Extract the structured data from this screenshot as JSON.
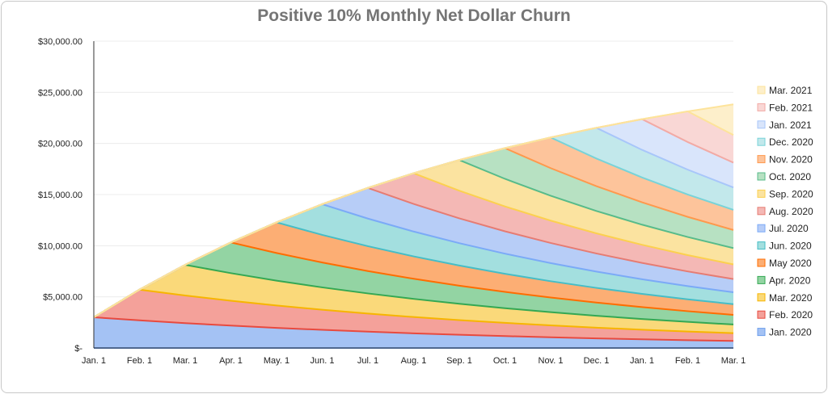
{
  "chart_data": {
    "type": "area",
    "stacked": true,
    "title": "Positive 10%  Monthly Net Dollar Churn",
    "xlabel": "",
    "ylabel": "",
    "ylim": [
      0,
      30000
    ],
    "yticks": [
      0,
      5000,
      10000,
      15000,
      20000,
      25000,
      30000
    ],
    "ytick_labels": [
      "$-",
      "$5,000.00",
      "$10,000.00",
      "$15,000.00",
      "$20,000.00",
      "$25,000.00",
      "$30,000.00"
    ],
    "grid": true,
    "legend_position": "right",
    "categories": [
      "Jan. 1",
      "Feb. 1",
      "Mar. 1",
      "Apr. 1",
      "May. 1",
      "Jun. 1",
      "Jul. 1",
      "Aug. 1",
      "Sep. 1",
      "Oct. 1",
      "Nov. 1",
      "Dec. 1",
      "Jan. 1",
      "Feb. 1",
      "Mar. 1"
    ],
    "series": [
      {
        "name": "Jan. 2020",
        "fill": "#a4c2f4",
        "line": "#6d9eeb",
        "values": [
          3000,
          2700,
          2430,
          2187,
          1968.3,
          1771.47,
          1594.32,
          1434.89,
          1291.4,
          1162.26,
          1046.03,
          941.43,
          847.29,
          762.56,
          686.3
        ]
      },
      {
        "name": "Feb. 2020",
        "fill": "#f4a19a",
        "line": "#e84a3f",
        "values": [
          0,
          3000,
          2700,
          2430,
          2187,
          1968.3,
          1771.47,
          1594.32,
          1434.89,
          1291.4,
          1162.26,
          1046.03,
          941.43,
          847.29,
          762.56
        ]
      },
      {
        "name": "Mar. 2020",
        "fill": "#fad97a",
        "line": "#f7b500",
        "values": [
          0,
          0,
          3000,
          2700,
          2430,
          2187,
          1968.3,
          1771.47,
          1594.32,
          1434.89,
          1291.4,
          1162.26,
          1046.03,
          941.43,
          847.29
        ]
      },
      {
        "name": "Apr. 2020",
        "fill": "#93d4a3",
        "line": "#34a853",
        "values": [
          0,
          0,
          0,
          3000,
          2700,
          2430,
          2187,
          1968.3,
          1771.47,
          1594.32,
          1434.89,
          1291.4,
          1162.26,
          1046.03,
          941.43
        ]
      },
      {
        "name": "May 2020",
        "fill": "#fcae74",
        "line": "#ff6d01",
        "values": [
          0,
          0,
          0,
          0,
          3000,
          2700,
          2430,
          2187,
          1968.3,
          1771.47,
          1594.32,
          1434.89,
          1291.4,
          1162.26,
          1046.03
        ]
      },
      {
        "name": "Jun. 2020",
        "fill": "#a3dfdf",
        "line": "#46bdc6",
        "values": [
          0,
          0,
          0,
          0,
          0,
          3000,
          2700,
          2430,
          2187,
          1968.3,
          1771.47,
          1594.32,
          1434.89,
          1291.4,
          1162.26
        ]
      },
      {
        "name": "Jul. 2020",
        "fill": "#b7cdf7",
        "line": "#7baaf7",
        "values": [
          0,
          0,
          0,
          0,
          0,
          0,
          3000,
          2700,
          2430,
          2187,
          1968.3,
          1771.47,
          1594.32,
          1434.89,
          1291.4
        ]
      },
      {
        "name": "Aug. 2020",
        "fill": "#f4b8b5",
        "line": "#e67c73",
        "values": [
          0,
          0,
          0,
          0,
          0,
          0,
          0,
          3000,
          2700,
          2430,
          2187,
          1968.3,
          1771.47,
          1594.32,
          1434.89
        ]
      },
      {
        "name": "Sep. 2020",
        "fill": "#fbe3a0",
        "line": "#fcd04f",
        "values": [
          0,
          0,
          0,
          0,
          0,
          0,
          0,
          0,
          3000,
          2700,
          2430,
          2187,
          1968.3,
          1771.47,
          1594.32
        ]
      },
      {
        "name": "Oct. 2020",
        "fill": "#b7e1c2",
        "line": "#57bb8a",
        "values": [
          0,
          0,
          0,
          0,
          0,
          0,
          0,
          0,
          0,
          3000,
          2700,
          2430,
          2187,
          1968.3,
          1771.47
        ]
      },
      {
        "name": "Nov. 2020",
        "fill": "#fdc49b",
        "line": "#ff994d",
        "values": [
          0,
          0,
          0,
          0,
          0,
          0,
          0,
          0,
          0,
          0,
          3000,
          2700,
          2430,
          2187,
          1968.3
        ]
      },
      {
        "name": "Dec. 2020",
        "fill": "#c2e8eb",
        "line": "#78d3d8",
        "values": [
          0,
          0,
          0,
          0,
          0,
          0,
          0,
          0,
          0,
          0,
          0,
          3000,
          2700,
          2430,
          2187
        ]
      },
      {
        "name": "Jan. 2021",
        "fill": "#d9e5fb",
        "line": "#a8c6fa",
        "values": [
          0,
          0,
          0,
          0,
          0,
          0,
          0,
          0,
          0,
          0,
          0,
          0,
          3000,
          2700,
          2430
        ]
      },
      {
        "name": "Feb. 2021",
        "fill": "#f9d7d5",
        "line": "#f2aaa5",
        "values": [
          0,
          0,
          0,
          0,
          0,
          0,
          0,
          0,
          0,
          0,
          0,
          0,
          0,
          3000,
          2700
        ]
      },
      {
        "name": "Mar. 2021",
        "fill": "#fdefcb",
        "line": "#fde39a",
        "values": [
          0,
          0,
          0,
          0,
          0,
          0,
          0,
          0,
          0,
          0,
          0,
          0,
          0,
          0,
          3000
        ]
      }
    ]
  }
}
